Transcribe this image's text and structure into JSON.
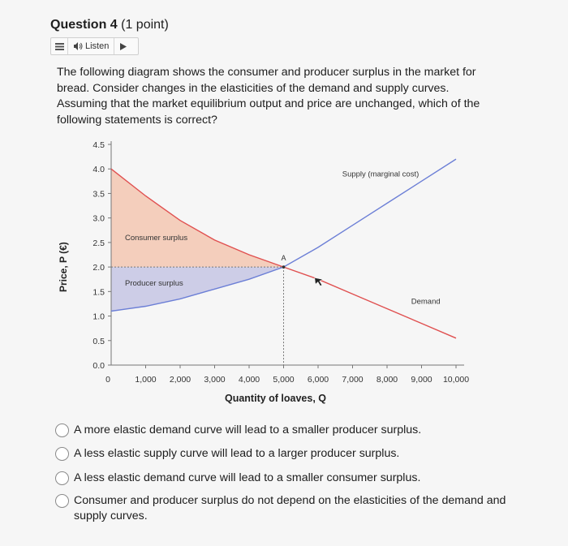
{
  "question": {
    "title_bold": "Question 4",
    "title_points": " (1 point)",
    "listen_label": "Listen",
    "stem": "The following diagram shows the consumer and producer surplus in the market for bread. Consider changes in the elasticities of the demand and supply curves. Assuming that the market equilibrium output and price are unchanged, which of the following statements is correct?"
  },
  "chart_data": {
    "type": "line",
    "xlabel": "Quantity of loaves, Q",
    "ylabel": "Price, P (€)",
    "xlim": [
      0,
      10000
    ],
    "ylim": [
      0,
      4.5
    ],
    "x_ticks": [
      "0",
      "1,000",
      "2,000",
      "3,000",
      "4,000",
      "5,000",
      "6,000",
      "7,000",
      "8,000",
      "9,000",
      "10,000"
    ],
    "y_ticks": [
      "0.0",
      "0.5",
      "1.0",
      "1.5",
      "2.0",
      "2.5",
      "3.0",
      "3.5",
      "4.0",
      "4.5"
    ],
    "series": [
      {
        "name": "Demand",
        "x": [
          0,
          1000,
          2000,
          3000,
          4000,
          5000,
          6000,
          7000,
          8000,
          9000,
          10000
        ],
        "values": [
          4.0,
          3.45,
          2.95,
          2.55,
          2.25,
          2.0,
          1.75,
          1.45,
          1.15,
          0.85,
          0.55
        ],
        "color": "#e05050"
      },
      {
        "name": "Supply (marginal cost)",
        "x": [
          0,
          1000,
          2000,
          3000,
          4000,
          5000,
          6000,
          7000,
          8000,
          9000,
          10000
        ],
        "values": [
          1.1,
          1.2,
          1.35,
          1.55,
          1.75,
          2.0,
          2.4,
          2.85,
          3.3,
          3.75,
          4.2
        ],
        "color": "#6c7fd6"
      }
    ],
    "equilibrium": {
      "label": "A",
      "x": 5000,
      "y": 2.0
    },
    "annotations": [
      "Consumer surplus",
      "Producer surplus"
    ],
    "consumer_surplus_color": "#f3c7b2",
    "producer_surplus_color": "#c9c9e6"
  },
  "options": [
    {
      "text": "A more elastic demand curve will lead to a smaller producer surplus."
    },
    {
      "text": "A less elastic supply curve will lead to a larger producer surplus."
    },
    {
      "text": "A less elastic demand curve will lead to a smaller consumer surplus."
    },
    {
      "text": "Consumer and producer surplus do not depend on the elasticities of the demand and supply curves."
    }
  ]
}
